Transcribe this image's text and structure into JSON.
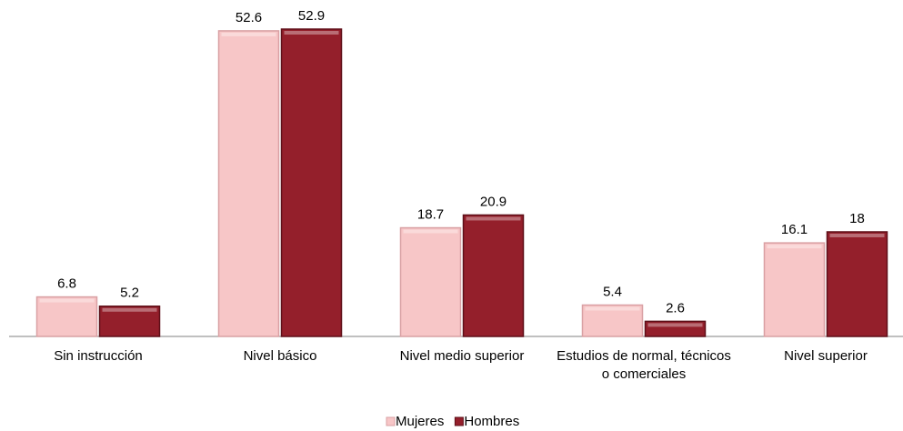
{
  "chart_data": {
    "type": "bar",
    "categories": [
      "Sin instrucción",
      "Nivel básico",
      "Nivel medio superior",
      "Estudios de normal, técnicos o comerciales",
      "Nivel superior"
    ],
    "series": [
      {
        "name": "Mujeres",
        "color": "#f7c6c7",
        "values": [
          6.8,
          52.6,
          18.7,
          5.4,
          16.1
        ]
      },
      {
        "name": "Hombres",
        "color": "#941f2b",
        "values": [
          5.2,
          52.9,
          20.9,
          2.6,
          18
        ]
      }
    ],
    "legend": "bottom"
  }
}
